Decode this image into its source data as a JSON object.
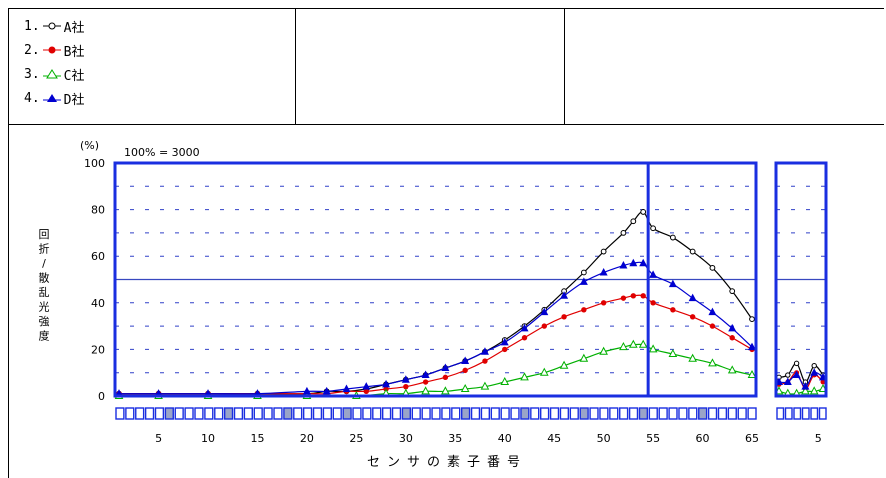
{
  "legend": [
    {
      "num": "1.",
      "name": "A社",
      "color": "#000000",
      "marker": "circle-open"
    },
    {
      "num": "2.",
      "name": "B社",
      "color": "#e00000",
      "marker": "circle-filled"
    },
    {
      "num": "3.",
      "name": "C社",
      "color": "#00b000",
      "marker": "triangle-open"
    },
    {
      "num": "4.",
      "name": "D社",
      "color": "#0000d0",
      "marker": "triangle-filled"
    }
  ],
  "chart_data": {
    "type": "line",
    "title": "",
    "unit_label": "(%)",
    "scale_note": "100% = 3000",
    "ylabel": "回折/散乱光強度",
    "xlabel": "センサの素子番号",
    "ylim": [
      0,
      100
    ],
    "yticks": [
      0,
      20,
      40,
      60,
      80,
      100
    ],
    "threshold_line": 50,
    "accent_color": "#1a2ee0",
    "main_panel": {
      "x_range": [
        1,
        65
      ],
      "xticks": [
        5,
        10,
        15,
        20,
        25,
        30,
        35,
        40,
        45,
        50,
        55,
        60,
        65
      ],
      "divider_at": 54.5,
      "series": [
        {
          "name": "A社",
          "color": "#000000",
          "marker": "circle-open",
          "x": [
            1,
            5,
            10,
            15,
            20,
            22,
            24,
            26,
            28,
            30,
            32,
            34,
            36,
            38,
            40,
            42,
            44,
            46,
            48,
            50,
            52,
            53,
            54,
            55,
            57,
            59,
            61,
            63,
            65
          ],
          "y": [
            1,
            1,
            1,
            1,
            1,
            2,
            2,
            3,
            5,
            7,
            9,
            12,
            15,
            19,
            24,
            30,
            37,
            45,
            53,
            62,
            70,
            75,
            79,
            72,
            68,
            62,
            55,
            45,
            33
          ]
        },
        {
          "name": "B社",
          "color": "#e00000",
          "marker": "circle-filled",
          "x": [
            1,
            5,
            10,
            15,
            20,
            22,
            24,
            26,
            28,
            30,
            32,
            34,
            36,
            38,
            40,
            42,
            44,
            46,
            48,
            50,
            52,
            53,
            54,
            55,
            57,
            59,
            61,
            63,
            65
          ],
          "y": [
            1,
            1,
            1,
            1,
            1,
            1,
            2,
            2,
            3,
            4,
            6,
            8,
            11,
            15,
            20,
            25,
            30,
            34,
            37,
            40,
            42,
            43,
            43,
            40,
            37,
            34,
            30,
            25,
            20
          ]
        },
        {
          "name": "C社",
          "color": "#00b000",
          "marker": "triangle-open",
          "x": [
            1,
            5,
            10,
            15,
            20,
            25,
            28,
            30,
            32,
            34,
            36,
            38,
            40,
            42,
            44,
            46,
            48,
            50,
            52,
            53,
            54,
            55,
            57,
            59,
            61,
            63,
            65
          ],
          "y": [
            0,
            0,
            0,
            0,
            0,
            0,
            1,
            1,
            2,
            2,
            3,
            4,
            6,
            8,
            10,
            13,
            16,
            19,
            21,
            22,
            22,
            20,
            18,
            16,
            14,
            11,
            9
          ]
        },
        {
          "name": "D社",
          "color": "#0000d0",
          "marker": "triangle-filled",
          "x": [
            1,
            5,
            10,
            15,
            20,
            22,
            24,
            26,
            28,
            30,
            32,
            34,
            36,
            38,
            40,
            42,
            44,
            46,
            48,
            50,
            52,
            53,
            54,
            55,
            57,
            59,
            61,
            63,
            65
          ],
          "y": [
            1,
            1,
            1,
            1,
            2,
            2,
            3,
            4,
            5,
            7,
            9,
            12,
            15,
            19,
            23,
            29,
            36,
            43,
            49,
            53,
            56,
            57,
            57,
            52,
            48,
            42,
            36,
            29,
            21
          ]
        }
      ]
    },
    "side_panel": {
      "x_range": [
        1,
        6
      ],
      "xticks": [
        5
      ],
      "series": [
        {
          "name": "A社",
          "color": "#000000",
          "marker": "circle-open",
          "x": [
            1,
            2,
            3,
            4,
            5,
            6
          ],
          "y": [
            8,
            9,
            14,
            6,
            13,
            9
          ]
        },
        {
          "name": "B社",
          "color": "#e00000",
          "marker": "circle-filled",
          "x": [
            1,
            2,
            3,
            4,
            5,
            6
          ],
          "y": [
            5,
            6,
            10,
            3,
            9,
            6
          ]
        },
        {
          "name": "C社",
          "color": "#00b000",
          "marker": "triangle-open",
          "x": [
            1,
            2,
            3,
            4,
            5,
            6
          ],
          "y": [
            2,
            1,
            1,
            2,
            2,
            3
          ]
        },
        {
          "name": "D社",
          "color": "#0000d0",
          "marker": "triangle-filled",
          "x": [
            1,
            2,
            3,
            4,
            5,
            6
          ],
          "y": [
            6,
            6,
            9,
            4,
            10,
            8
          ]
        }
      ]
    }
  }
}
